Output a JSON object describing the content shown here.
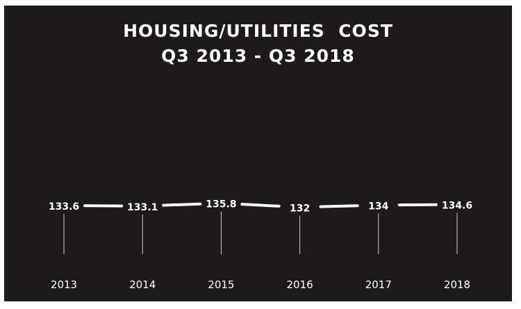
{
  "chart_data": {
    "type": "line",
    "title": "HOUSING/UTILITIES  COST",
    "subtitle": "Q3 2013 - Q3 2018",
    "categories": [
      "2013",
      "2014",
      "2015",
      "2016",
      "2017",
      "2018"
    ],
    "values": [
      133.6,
      133.1,
      135.8,
      132,
      134,
      134.6
    ],
    "data_labels": [
      "133.6",
      "133.1",
      "135.8",
      "132",
      "134",
      "134.6"
    ],
    "xlabel": "",
    "ylabel": "",
    "grid": false,
    "legend": "none",
    "drop_lines": true,
    "colors": {
      "background": "#1e1a1a",
      "line": "#ffffff",
      "text": "#ffffff"
    }
  }
}
